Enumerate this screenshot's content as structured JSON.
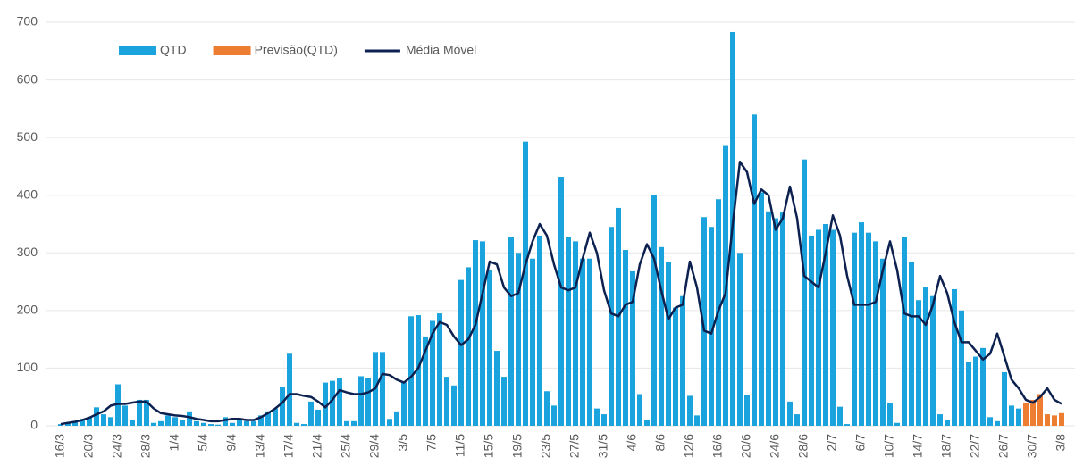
{
  "chart_data": {
    "type": "bar",
    "categories": [
      "16/3",
      null,
      null,
      null,
      "20/3",
      null,
      null,
      null,
      "24/3",
      null,
      null,
      null,
      "28/3",
      null,
      null,
      null,
      "1/4",
      null,
      null,
      null,
      "5/4",
      null,
      null,
      null,
      "9/4",
      null,
      null,
      null,
      "13/4",
      null,
      null,
      null,
      "17/4",
      null,
      null,
      null,
      "21/4",
      null,
      null,
      null,
      "25/4",
      null,
      null,
      null,
      "29/4",
      null,
      null,
      null,
      "3/5",
      null,
      null,
      null,
      "7/5",
      null,
      null,
      null,
      "11/5",
      null,
      null,
      null,
      "15/5",
      null,
      null,
      null,
      "19/5",
      null,
      null,
      null,
      "23/5",
      null,
      null,
      null,
      "27/5",
      null,
      null,
      null,
      "31/5",
      null,
      null,
      null,
      "4/6",
      null,
      null,
      null,
      "8/6",
      null,
      null,
      null,
      "12/6",
      null,
      null,
      null,
      "16/6",
      null,
      null,
      null,
      "20/6",
      null,
      null,
      null,
      "24/6",
      null,
      null,
      null,
      "28/6",
      null,
      null,
      null,
      "2/7",
      null,
      null,
      null,
      "6/7",
      null,
      null,
      null,
      "10/7",
      null,
      null,
      null,
      "14/7",
      null,
      null,
      null,
      "18/7",
      null,
      null,
      null,
      "22/7",
      null,
      null,
      null,
      "26/7",
      null,
      null,
      null,
      "30/7",
      null,
      null,
      null,
      "3/8"
    ],
    "series": [
      {
        "name": "QTD",
        "color": "#1aa3dc",
        "kind": "bar",
        "values": [
          3,
          5,
          8,
          12,
          15,
          32,
          20,
          15,
          72,
          35,
          10,
          45,
          45,
          5,
          8,
          18,
          15,
          10,
          25,
          8,
          5,
          3,
          2,
          15,
          5,
          10,
          8,
          8,
          18,
          25,
          30,
          68,
          125,
          5,
          3,
          42,
          28,
          75,
          78,
          82,
          8,
          8,
          86,
          83,
          128,
          128,
          12,
          25,
          75,
          190,
          192,
          155,
          182,
          195,
          85,
          70,
          253,
          275,
          322,
          320,
          270,
          130,
          85,
          327,
          300,
          493,
          290,
          330,
          60,
          35,
          432,
          328,
          320,
          290,
          290,
          30,
          20,
          345,
          378,
          305,
          268,
          55,
          10,
          400,
          310,
          285,
          205,
          225,
          52,
          18,
          362,
          345,
          393,
          487,
          683,
          300,
          53,
          540,
          405,
          372,
          360,
          370,
          42,
          20,
          462,
          330,
          340,
          350,
          340,
          33,
          3,
          335,
          353,
          335,
          320,
          290,
          40,
          5,
          327,
          285,
          218,
          240,
          225,
          20,
          10,
          237,
          200,
          110,
          120,
          135,
          15,
          8,
          93,
          35,
          30,
          null,
          null,
          null,
          null,
          null,
          null
        ]
      },
      {
        "name": "Previsão(QTD)",
        "color": "#ed7d31",
        "kind": "bar",
        "values": [
          null,
          null,
          null,
          null,
          null,
          null,
          null,
          null,
          null,
          null,
          null,
          null,
          null,
          null,
          null,
          null,
          null,
          null,
          null,
          null,
          null,
          null,
          null,
          null,
          null,
          null,
          null,
          null,
          null,
          null,
          null,
          null,
          null,
          null,
          null,
          null,
          null,
          null,
          null,
          null,
          null,
          null,
          null,
          null,
          null,
          null,
          null,
          null,
          null,
          null,
          null,
          null,
          null,
          null,
          null,
          null,
          null,
          null,
          null,
          null,
          null,
          null,
          null,
          null,
          null,
          null,
          null,
          null,
          null,
          null,
          null,
          null,
          null,
          null,
          null,
          null,
          null,
          null,
          null,
          null,
          null,
          null,
          null,
          null,
          null,
          null,
          null,
          null,
          null,
          null,
          null,
          null,
          null,
          null,
          null,
          null,
          null,
          null,
          null,
          null,
          null,
          null,
          null,
          null,
          null,
          null,
          null,
          null,
          null,
          null,
          null,
          null,
          null,
          null,
          null,
          null,
          null,
          null,
          null,
          null,
          null,
          null,
          null,
          null,
          null,
          null,
          null,
          null,
          null,
          null,
          null,
          null,
          null,
          null,
          null,
          40,
          45,
          55,
          20,
          18,
          22
        ]
      },
      {
        "name": "Média Móvel",
        "color": "#0d2150",
        "kind": "line",
        "values": [
          3,
          5,
          7,
          10,
          14,
          20,
          25,
          35,
          38,
          38,
          40,
          42,
          42,
          30,
          22,
          20,
          18,
          17,
          15,
          12,
          10,
          8,
          8,
          10,
          12,
          12,
          10,
          10,
          15,
          22,
          30,
          40,
          55,
          55,
          52,
          50,
          42,
          32,
          45,
          62,
          58,
          55,
          55,
          58,
          65,
          90,
          88,
          80,
          75,
          85,
          100,
          130,
          160,
          180,
          175,
          155,
          140,
          150,
          175,
          230,
          285,
          280,
          240,
          225,
          230,
          280,
          320,
          350,
          330,
          280,
          240,
          235,
          240,
          290,
          335,
          300,
          235,
          195,
          190,
          210,
          215,
          280,
          315,
          290,
          235,
          185,
          205,
          210,
          285,
          240,
          165,
          160,
          200,
          230,
          350,
          458,
          440,
          385,
          410,
          400,
          340,
          360,
          415,
          360,
          260,
          250,
          240,
          300,
          365,
          330,
          260,
          210,
          210,
          210,
          215,
          270,
          320,
          270,
          195,
          190,
          190,
          175,
          210,
          260,
          230,
          180,
          145,
          145,
          130,
          115,
          125,
          160,
          120,
          80,
          65,
          45,
          40,
          50,
          65,
          45,
          38
        ]
      }
    ],
    "ylim": [
      0,
      700
    ],
    "yticks": [
      0,
      100,
      200,
      300,
      400,
      500,
      600,
      700
    ],
    "grid": true
  }
}
